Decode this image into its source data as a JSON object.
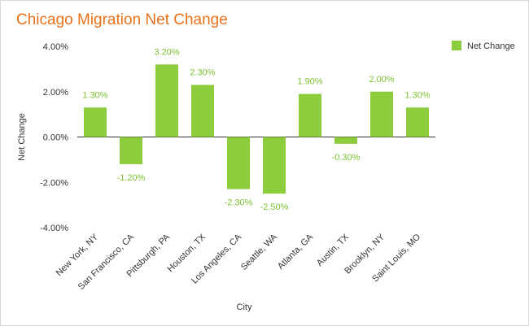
{
  "chart_data": {
    "type": "bar",
    "title": "Chicago Migration Net Change",
    "xlabel": "City",
    "ylabel": "Net Change",
    "categories": [
      "New York, NY",
      "San Francisco, CA",
      "Pittsburgh, PA",
      "Houston, TX",
      "Los Angeles, CA",
      "Seattle, WA",
      "Atlanta, GA",
      "Austin, TX",
      "Brooklyn, NY",
      "Saint Louis, MO"
    ],
    "series": [
      {
        "name": "Net Change",
        "values": [
          1.3,
          -1.2,
          3.2,
          2.3,
          -2.3,
          -2.5,
          1.9,
          -0.3,
          2.0,
          1.3
        ],
        "labels": [
          "1.30%",
          "-1.20%",
          "3.20%",
          "2.30%",
          "-2.30%",
          "-2.50%",
          "1.90%",
          "-0.30%",
          "2.00%",
          "1.30%"
        ]
      }
    ],
    "ylim": [
      -4,
      4
    ],
    "yticks": [
      4,
      2,
      0,
      -2,
      -4
    ],
    "ytick_labels": [
      "4.00%",
      "2.00%",
      "0.00%",
      "-2.00%",
      "-4.00%"
    ],
    "grid": false,
    "legend_position": "top-right",
    "colors": {
      "bar": "#8ccc3d",
      "label": "#7cc233",
      "title": "#e8711a",
      "axis": "#333333"
    }
  }
}
